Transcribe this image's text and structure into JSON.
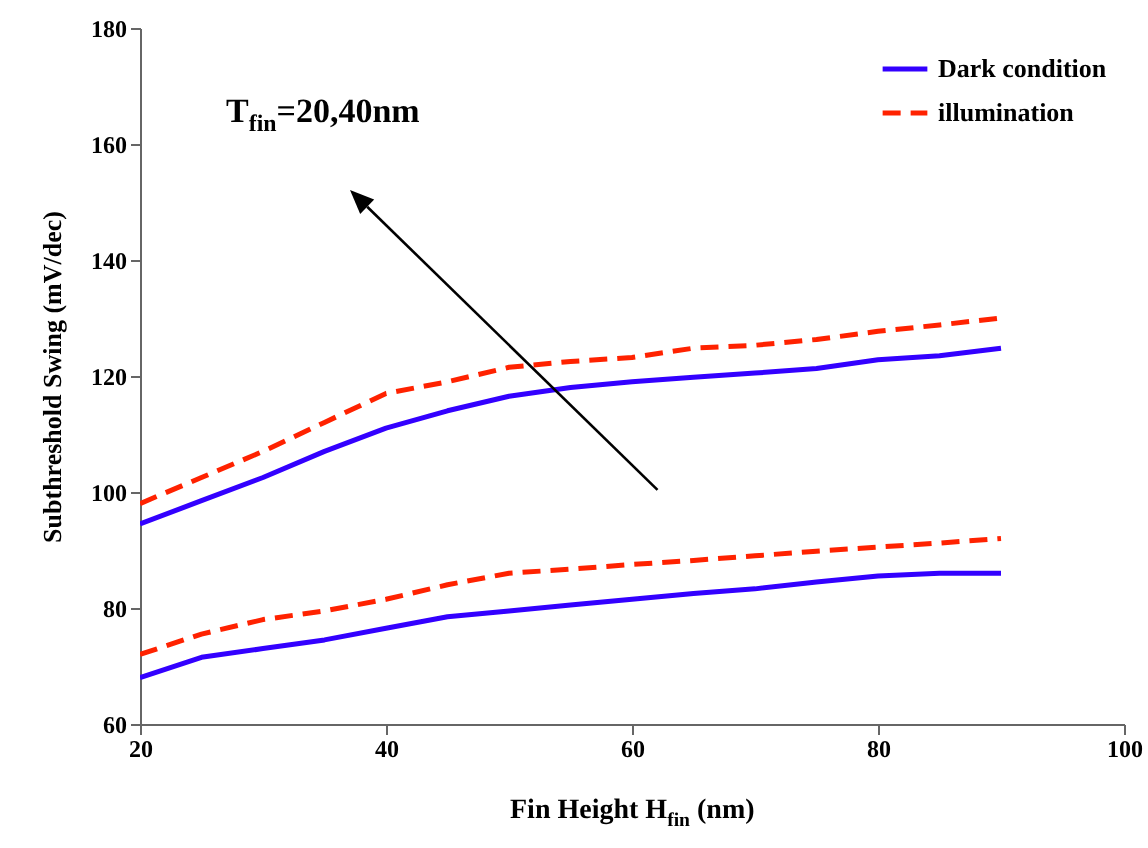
{
  "chart_data": {
    "type": "line",
    "xlabel": "Fin Height H$_{fin}$  (nm)",
    "ylabel": "Subthreshold Swing (mV/dec)",
    "annotations": [
      "T$_{fin}$=20,40nm"
    ],
    "xlim": [
      20,
      100
    ],
    "xticks": [
      20,
      40,
      60,
      80,
      100
    ],
    "ylim": [
      60,
      180
    ],
    "yticks": [
      60,
      80,
      100,
      120,
      140,
      160,
      180
    ],
    "grid": false,
    "legend": "top right",
    "marker": "none",
    "x": [
      20,
      25,
      30,
      35,
      40,
      45,
      50,
      55,
      60,
      65,
      70,
      75,
      80,
      85,
      90
    ],
    "series": [
      {
        "name": "Dark condition",
        "color": "#3300ff",
        "line_style": "solid",
        "values": [
          94.5,
          98.5,
          102.5,
          107,
          111,
          114,
          116.5,
          118,
          119,
          119.8,
          120.5,
          121.3,
          122.8,
          123.5,
          124.8
        ]
      },
      {
        "name": "illumination",
        "color": "#ff2200",
        "line_style": "dashed",
        "values": [
          98,
          102.5,
          107,
          112,
          117,
          119,
          121.5,
          122.5,
          123.2,
          124.8,
          125.3,
          126.3,
          127.7,
          128.8,
          130
        ]
      },
      {
        "color": "#3300ff",
        "line_style": "solid",
        "values": [
          68,
          71.5,
          73,
          74.5,
          76.5,
          78.5,
          79.5,
          80.5,
          81.5,
          82.5,
          83.3,
          84.5,
          85.5,
          86,
          86
        ]
      },
      {
        "color": "#ff2200",
        "line_style": "dashed",
        "values": [
          72,
          75.5,
          78,
          79.5,
          81.5,
          84,
          86,
          86.7,
          87.5,
          88.2,
          89,
          89.8,
          90.5,
          91.2,
          92
        ]
      }
    ]
  }
}
